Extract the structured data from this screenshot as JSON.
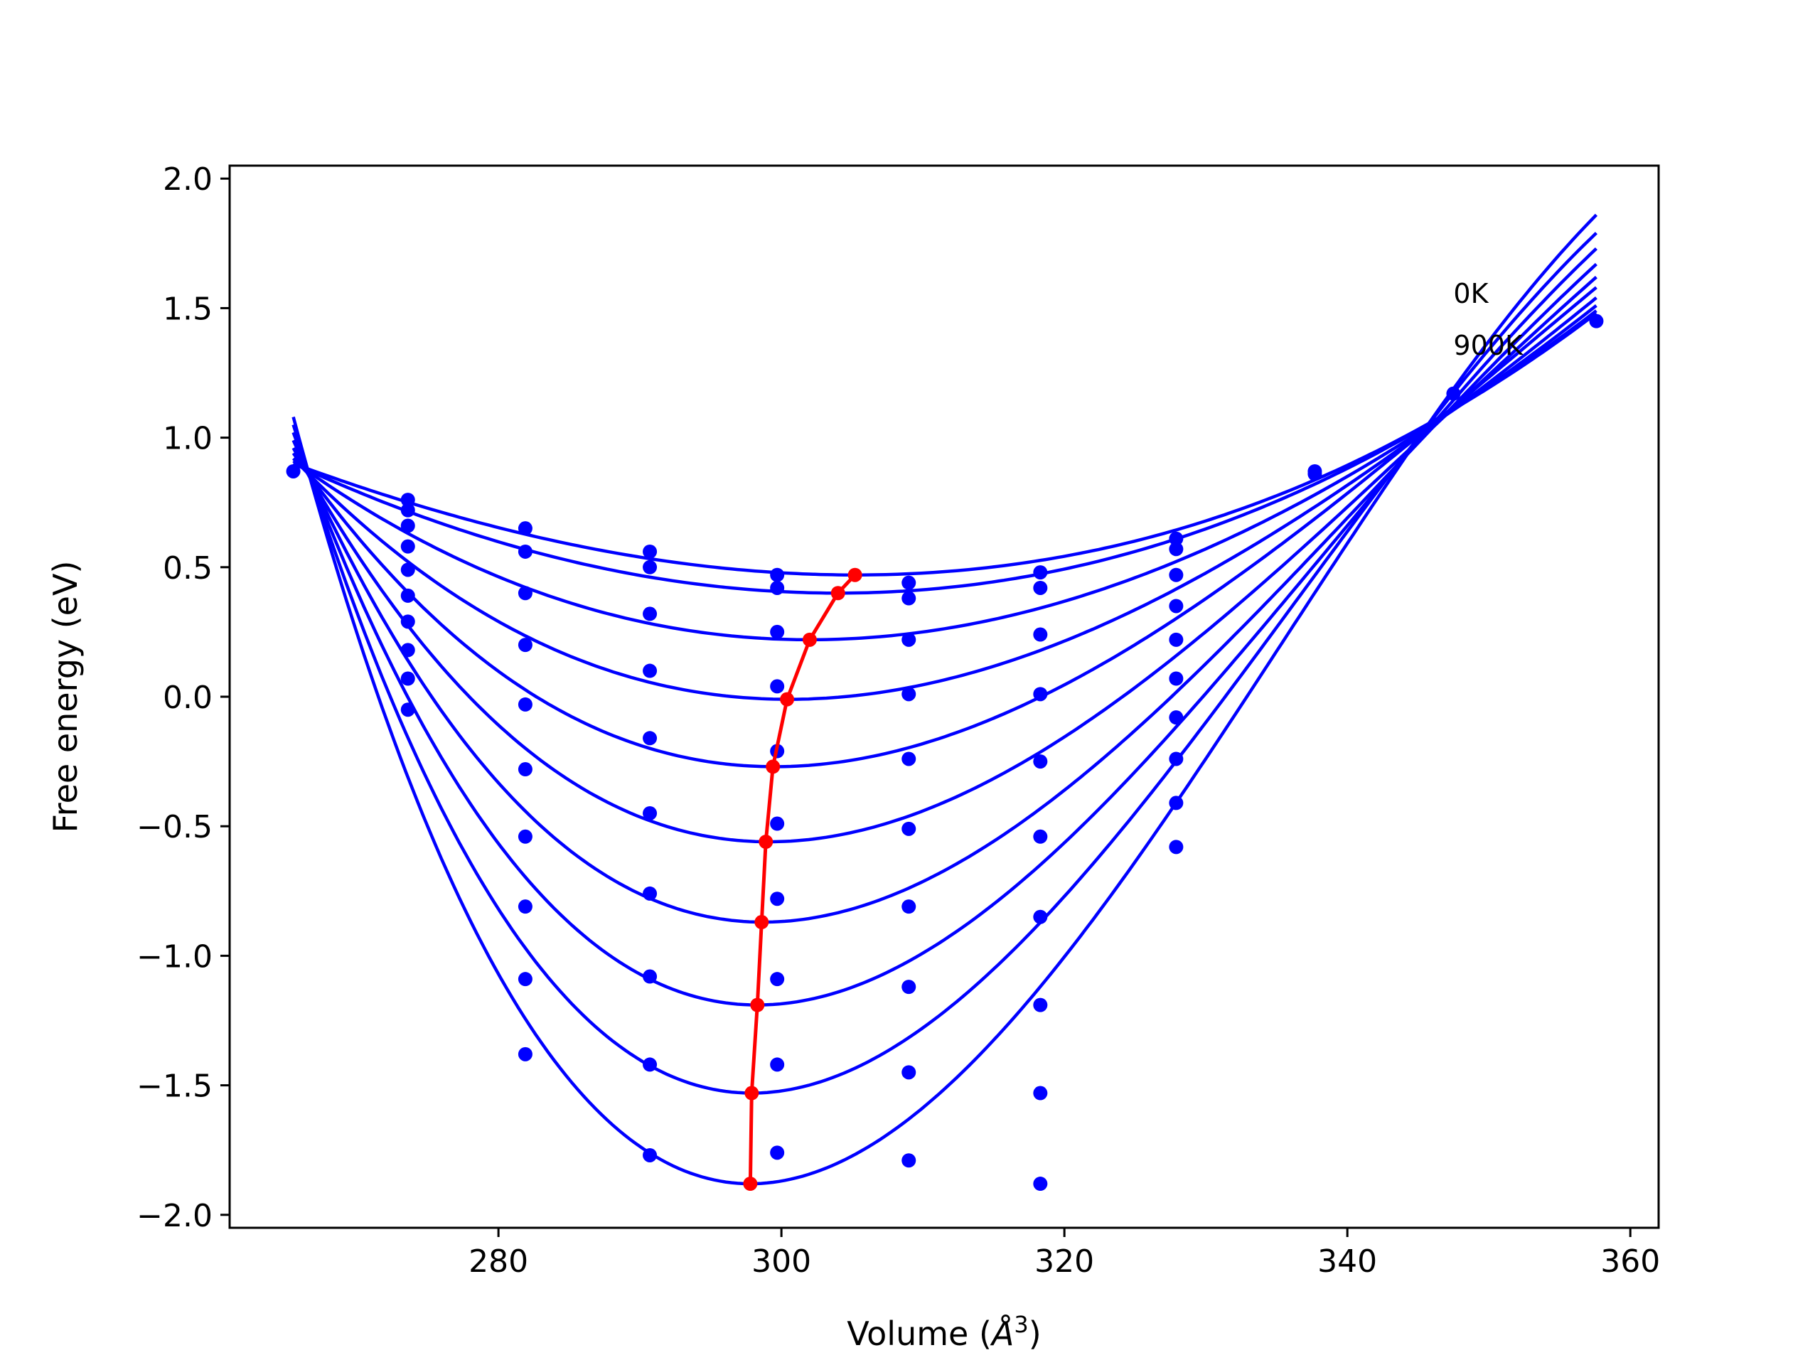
{
  "chart_data": {
    "type": "line",
    "title": "",
    "xlabel": "Volume",
    "xlabel_unit": "Å",
    "xlabel_unit_exp": "3",
    "ylabel": "Free energy (eV)",
    "xlim": [
      261,
      362
    ],
    "ylim": [
      -2.05,
      2.05
    ],
    "xticks": [
      280,
      300,
      320,
      340,
      360
    ],
    "yticks": [
      2.0,
      1.5,
      1.0,
      0.5,
      0.0,
      -0.5,
      -1.0,
      -1.5,
      -2.0
    ],
    "ytick_labels": [
      "2.0",
      "1.5",
      "1.0",
      "0.5",
      "0.0",
      "−0.5",
      "−1.0",
      "−1.5",
      "−2.0"
    ],
    "grid": false,
    "legend": null,
    "annotations": [
      {
        "text": "0K",
        "x": 347.5,
        "y": 1.52
      },
      {
        "text": "900K",
        "x": 347.5,
        "y": 1.32
      }
    ],
    "colors": {
      "fit_curves": "#0000ff",
      "data_points": "#0000ff",
      "min_path": "#ff0000"
    },
    "volumes": [
      265.5,
      273.6,
      281.9,
      290.7,
      299.7,
      309.0,
      318.3,
      327.9,
      337.7,
      347.5,
      357.6
    ],
    "series": [
      {
        "type": "fit_curves",
        "V0": [
          297.8,
          297.9,
          298.3,
          298.7,
          299.1,
          299.5,
          300.5,
          302.0,
          304.0,
          305.2
        ],
        "Emin": [
          -1.88,
          -1.53,
          -1.19,
          -0.87,
          -0.56,
          -0.27,
          -0.01,
          0.22,
          0.4,
          0.47
        ],
        "Eleft": [
          1.08,
          1.05,
          1.02,
          0.99,
          0.96,
          0.94,
          0.92,
          0.91,
          0.9,
          0.9
        ],
        "Eright": [
          1.86,
          1.79,
          1.73,
          1.67,
          1.62,
          1.58,
          1.54,
          1.51,
          1.49,
          1.48
        ]
      },
      {
        "type": "scatter",
        "name_hidden": true,
        "points": [
          [
            265.5,
            0.87
          ],
          [
            273.6,
            0.76
          ],
          [
            273.6,
            0.72
          ],
          [
            273.6,
            0.66
          ],
          [
            273.6,
            0.58
          ],
          [
            273.6,
            0.49
          ],
          [
            273.6,
            0.39
          ],
          [
            273.6,
            0.29
          ],
          [
            273.6,
            0.18
          ],
          [
            273.6,
            0.07
          ],
          [
            273.6,
            -0.05
          ],
          [
            281.9,
            0.65
          ],
          [
            281.9,
            0.56
          ],
          [
            281.9,
            0.4
          ],
          [
            281.9,
            0.2
          ],
          [
            281.9,
            -0.03
          ],
          [
            281.9,
            -0.28
          ],
          [
            281.9,
            -0.54
          ],
          [
            281.9,
            -0.81
          ],
          [
            281.9,
            -1.09
          ],
          [
            281.9,
            -1.38
          ],
          [
            290.7,
            0.56
          ],
          [
            290.7,
            0.5
          ],
          [
            290.7,
            0.32
          ],
          [
            290.7,
            0.1
          ],
          [
            290.7,
            -0.16
          ],
          [
            290.7,
            -0.45
          ],
          [
            290.7,
            -0.76
          ],
          [
            290.7,
            -1.08
          ],
          [
            290.7,
            -1.42
          ],
          [
            290.7,
            -1.77
          ],
          [
            299.7,
            0.47
          ],
          [
            299.7,
            0.42
          ],
          [
            299.7,
            0.25
          ],
          [
            299.7,
            0.04
          ],
          [
            299.7,
            -0.21
          ],
          [
            299.7,
            -0.49
          ],
          [
            299.7,
            -0.78
          ],
          [
            299.7,
            -1.09
          ],
          [
            299.7,
            -1.42
          ],
          [
            299.7,
            -1.76
          ],
          [
            309.0,
            0.44
          ],
          [
            309.0,
            0.38
          ],
          [
            309.0,
            0.22
          ],
          [
            309.0,
            0.01
          ],
          [
            309.0,
            -0.24
          ],
          [
            309.0,
            -0.51
          ],
          [
            309.0,
            -0.81
          ],
          [
            309.0,
            -1.12
          ],
          [
            309.0,
            -1.45
          ],
          [
            309.0,
            -1.79
          ],
          [
            318.3,
            0.48
          ],
          [
            318.3,
            0.42
          ],
          [
            318.3,
            0.24
          ],
          [
            318.3,
            0.01
          ],
          [
            318.3,
            -0.25
          ],
          [
            318.3,
            -0.54
          ],
          [
            318.3,
            -0.85
          ],
          [
            318.3,
            -1.19
          ],
          [
            318.3,
            -1.53
          ],
          [
            318.3,
            -1.88
          ],
          [
            327.9,
            0.61
          ],
          [
            327.9,
            0.57
          ],
          [
            327.9,
            0.47
          ],
          [
            327.9,
            0.35
          ],
          [
            327.9,
            0.22
          ],
          [
            327.9,
            0.07
          ],
          [
            327.9,
            -0.08
          ],
          [
            327.9,
            -0.24
          ],
          [
            327.9,
            -0.41
          ],
          [
            327.9,
            -0.58
          ],
          [
            337.7,
            0.87
          ],
          [
            337.7,
            0.86
          ],
          [
            347.5,
            1.17
          ],
          [
            357.6,
            1.45
          ]
        ]
      },
      {
        "type": "min_path",
        "points": [
          [
            297.8,
            -1.88
          ],
          [
            297.9,
            -1.53
          ],
          [
            298.3,
            -1.19
          ],
          [
            298.6,
            -0.87
          ],
          [
            298.9,
            -0.56
          ],
          [
            299.4,
            -0.27
          ],
          [
            300.4,
            -0.01
          ],
          [
            302.0,
            0.22
          ],
          [
            304.0,
            0.4
          ],
          [
            305.2,
            0.47
          ]
        ]
      }
    ]
  }
}
